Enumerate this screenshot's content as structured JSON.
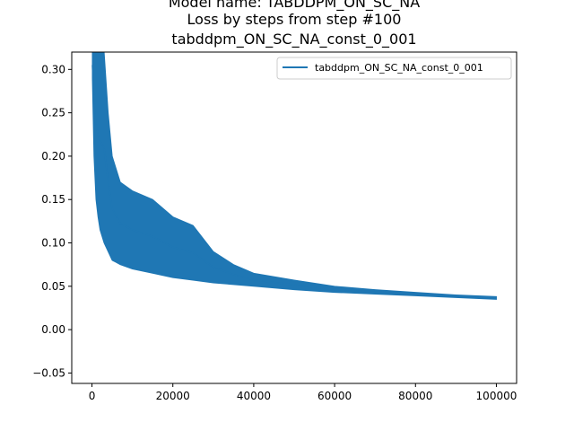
{
  "chart_data": {
    "type": "line",
    "title_lines": [
      "Model name: TABDDPM_ON_SC_NA",
      "Loss by steps from step #100",
      "tabddpm_ON_SC_NA_const_0_001"
    ],
    "xlabel": "",
    "ylabel": "",
    "xlim": [
      -5000,
      105000
    ],
    "ylim": [
      -0.062,
      0.32
    ],
    "x_ticks": [
      0,
      20000,
      40000,
      60000,
      80000,
      100000
    ],
    "x_tick_labels": [
      "0",
      "20000",
      "40000",
      "60000",
      "80000",
      "100000"
    ],
    "y_ticks": [
      -0.05,
      0.0,
      0.05,
      0.1,
      0.15,
      0.2,
      0.25,
      0.3
    ],
    "y_tick_labels": [
      "−0.05",
      "0.00",
      "0.05",
      "0.10",
      "0.15",
      "0.20",
      "0.25",
      "0.30"
    ],
    "grid": false,
    "legend_position": "top-right",
    "series": [
      {
        "name": "tabddpm_ON_SC_NA_const_0_001",
        "color": "#1f77b4",
        "x": [
          100,
          500,
          1000,
          1500,
          2000,
          3000,
          4000,
          5000,
          7000,
          10000,
          15000,
          20000,
          25000,
          30000,
          35000,
          40000,
          50000,
          60000,
          70000,
          80000,
          90000,
          100000
        ],
        "lower": [
          0.29,
          0.2,
          0.15,
          0.13,
          0.115,
          0.1,
          0.09,
          0.08,
          0.075,
          0.07,
          0.065,
          0.06,
          0.057,
          0.054,
          0.052,
          0.05,
          0.046,
          0.043,
          0.041,
          0.039,
          0.037,
          0.035
        ],
        "upper": [
          0.32,
          0.32,
          0.32,
          0.32,
          0.32,
          0.32,
          0.25,
          0.2,
          0.17,
          0.16,
          0.15,
          0.13,
          0.12,
          0.09,
          0.075,
          0.065,
          0.057,
          0.05,
          0.046,
          0.043,
          0.04,
          0.038
        ]
      }
    ]
  }
}
